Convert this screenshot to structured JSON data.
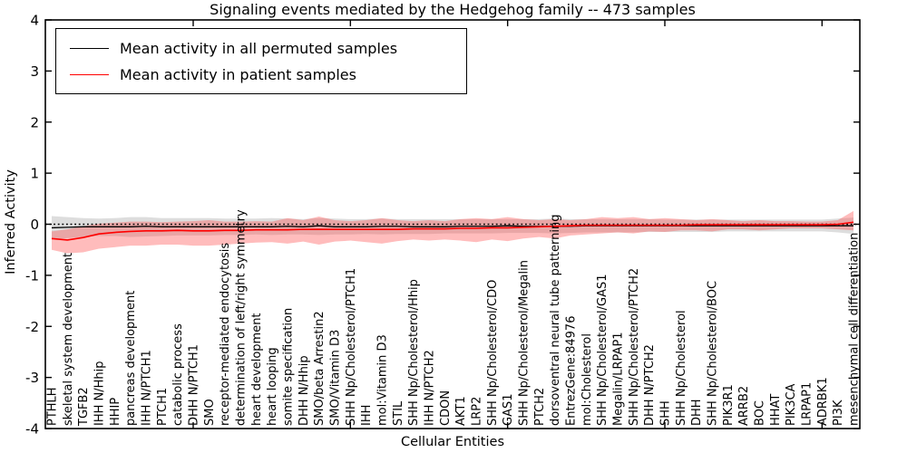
{
  "title": "Signaling events mediated by the Hedgehog family -- 473 samples",
  "legend": {
    "entries": [
      {
        "label": "Mean activity in all permuted samples",
        "color": "#000000"
      },
      {
        "label": "Mean activity in patient samples",
        "color": "#ff0000"
      }
    ]
  },
  "colors": {
    "frame": "#000000",
    "background": "#ffffff",
    "permuted_line": "#000000",
    "patient_line": "#ff0000",
    "permuted_band": "#aaaaaa",
    "patient_band": "#ff4040",
    "zero_line": "#000000"
  },
  "chart_data": {
    "type": "line",
    "title": "Signaling events mediated by the Hedgehog family -- 473 samples",
    "xlabel": "Cellular Entities",
    "ylabel": "Inferred Activity",
    "ylim": [
      -4,
      4
    ],
    "yticks": [
      4,
      3,
      2,
      1,
      0,
      -1,
      -2,
      -3,
      -4
    ],
    "x_major_tick_indices": [
      9,
      19,
      29,
      39,
      49
    ],
    "grid": false,
    "legend_position": "upper left",
    "zero_line_dotted": true,
    "categories": [
      "PTHLH",
      "skeletal system development",
      "TGFB2",
      "IHH N/Hhip",
      "HHIP",
      "pancreas development",
      "IHH N/PTCH1",
      "PTCH1",
      "catabolic process",
      "DHH N/PTCH1",
      "SMO",
      "receptor-mediated endocytosis",
      "determination of left/right symmetry",
      "heart development",
      "heart looping",
      "somite specification",
      "DHH N/Hhip",
      "SMO/beta Arrestin2",
      "SMO/Vitamin D3",
      "SHH Np/Cholesterol/PTCH1",
      "IHH",
      "mol:Vitamin D3",
      "STIL",
      "SHH Np/Cholesterol/Hhip",
      "IHH N/PTCH2",
      "CDON",
      "AKT1",
      "LRP2",
      "SHH Np/Cholesterol/CDO",
      "GAS1",
      "SHH Np/Cholesterol/Megalin",
      "PTCH2",
      "dorsoventral neural tube patterning",
      "EntrezGene:84976",
      "mol:Cholesterol",
      "SHH Np/Cholesterol/GAS1",
      "Megalin/LRPAP1",
      "SHH Np/Cholesterol/PTCH2",
      "DHH N/PTCH2",
      "SHH",
      "SHH Np/Cholesterol",
      "DHH",
      "SHH Np/Cholesterol/BOC",
      "PIK3R1",
      "ARRB2",
      "BOC",
      "HHAT",
      "PIK3CA",
      "LRPAP1",
      "ADRBK1",
      "PI3K",
      "mesenchymal cell differentiation"
    ],
    "series": [
      {
        "name": "Mean activity in all permuted samples",
        "color": "#000000",
        "values": [
          -0.07,
          -0.06,
          -0.05,
          -0.05,
          -0.05,
          -0.05,
          -0.04,
          -0.05,
          -0.05,
          -0.05,
          -0.05,
          -0.05,
          -0.05,
          -0.05,
          -0.05,
          -0.04,
          -0.05,
          -0.03,
          -0.05,
          -0.05,
          -0.05,
          -0.04,
          -0.04,
          -0.05,
          -0.05,
          -0.05,
          -0.04,
          -0.04,
          -0.04,
          -0.03,
          -0.04,
          -0.04,
          -0.04,
          -0.04,
          -0.03,
          -0.03,
          -0.03,
          -0.03,
          -0.03,
          -0.03,
          -0.03,
          -0.03,
          -0.03,
          -0.03,
          -0.03,
          -0.03,
          -0.03,
          -0.03,
          -0.03,
          -0.03,
          -0.03,
          -0.03
        ]
      },
      {
        "name": "Mean activity in patient samples",
        "color": "#ff0000",
        "values": [
          -0.28,
          -0.31,
          -0.26,
          -0.19,
          -0.16,
          -0.14,
          -0.13,
          -0.13,
          -0.12,
          -0.13,
          -0.13,
          -0.12,
          -0.12,
          -0.11,
          -0.11,
          -0.11,
          -0.1,
          -0.1,
          -0.1,
          -0.1,
          -0.1,
          -0.1,
          -0.1,
          -0.09,
          -0.09,
          -0.09,
          -0.08,
          -0.08,
          -0.07,
          -0.07,
          -0.06,
          -0.05,
          -0.04,
          -0.03,
          -0.02,
          -0.02,
          -0.02,
          -0.02,
          -0.02,
          -0.02,
          -0.02,
          -0.01,
          -0.01,
          -0.01,
          -0.01,
          -0.01,
          -0.01,
          -0.01,
          -0.01,
          -0.01,
          0.0,
          0.04
        ]
      }
    ],
    "bands": [
      {
        "name": "permuted-samples-range",
        "color": "#aaaaaa",
        "opacity": 0.4,
        "upper": [
          0.16,
          0.14,
          0.12,
          0.11,
          0.12,
          0.14,
          0.14,
          0.12,
          0.12,
          0.12,
          0.12,
          0.11,
          0.11,
          0.11,
          0.12,
          0.11,
          0.1,
          0.12,
          0.11,
          0.1,
          0.1,
          0.11,
          0.1,
          0.1,
          0.1,
          0.1,
          0.1,
          0.1,
          0.1,
          0.1,
          0.1,
          0.1,
          0.11,
          0.1,
          0.1,
          0.1,
          0.1,
          0.1,
          0.1,
          0.09,
          0.09,
          0.09,
          0.09,
          0.09,
          0.09,
          0.09,
          0.09,
          0.09,
          0.09,
          0.09,
          0.11,
          0.13
        ],
        "lower": [
          -0.3,
          -0.27,
          -0.25,
          -0.23,
          -0.23,
          -0.25,
          -0.24,
          -0.23,
          -0.22,
          -0.22,
          -0.22,
          -0.21,
          -0.21,
          -0.2,
          -0.21,
          -0.2,
          -0.2,
          -0.21,
          -0.2,
          -0.2,
          -0.19,
          -0.2,
          -0.19,
          -0.19,
          -0.19,
          -0.18,
          -0.18,
          -0.18,
          -0.18,
          -0.17,
          -0.17,
          -0.17,
          -0.18,
          -0.17,
          -0.16,
          -0.16,
          -0.16,
          -0.16,
          -0.15,
          -0.15,
          -0.15,
          -0.15,
          -0.15,
          -0.14,
          -0.14,
          -0.14,
          -0.14,
          -0.14,
          -0.14,
          -0.14,
          -0.16,
          -0.19
        ]
      },
      {
        "name": "patient-samples-range",
        "color": "#ff4040",
        "opacity": 0.35,
        "upper": [
          -0.14,
          -0.1,
          -0.04,
          0.01,
          0.03,
          0.05,
          0.05,
          0.04,
          0.05,
          0.06,
          0.08,
          0.05,
          0.05,
          0.06,
          0.05,
          0.12,
          0.08,
          0.15,
          0.08,
          0.06,
          0.08,
          0.12,
          0.08,
          0.06,
          0.08,
          0.06,
          0.1,
          0.12,
          0.1,
          0.14,
          0.1,
          0.08,
          0.1,
          0.08,
          0.1,
          0.14,
          0.12,
          0.14,
          0.1,
          0.12,
          0.1,
          0.08,
          0.1,
          0.08,
          0.06,
          0.08,
          0.06,
          0.06,
          0.05,
          0.05,
          0.08,
          0.26
        ],
        "lower": [
          -0.5,
          -0.57,
          -0.55,
          -0.48,
          -0.45,
          -0.42,
          -0.42,
          -0.4,
          -0.4,
          -0.42,
          -0.42,
          -0.4,
          -0.38,
          -0.36,
          -0.35,
          -0.38,
          -0.34,
          -0.4,
          -0.34,
          -0.32,
          -0.35,
          -0.38,
          -0.33,
          -0.3,
          -0.32,
          -0.3,
          -0.32,
          -0.35,
          -0.3,
          -0.33,
          -0.28,
          -0.25,
          -0.28,
          -0.22,
          -0.2,
          -0.18,
          -0.16,
          -0.18,
          -0.14,
          -0.15,
          -0.12,
          -0.12,
          -0.14,
          -0.1,
          -0.1,
          -0.12,
          -0.1,
          -0.08,
          -0.08,
          -0.08,
          -0.1,
          -0.12
        ]
      }
    ]
  }
}
